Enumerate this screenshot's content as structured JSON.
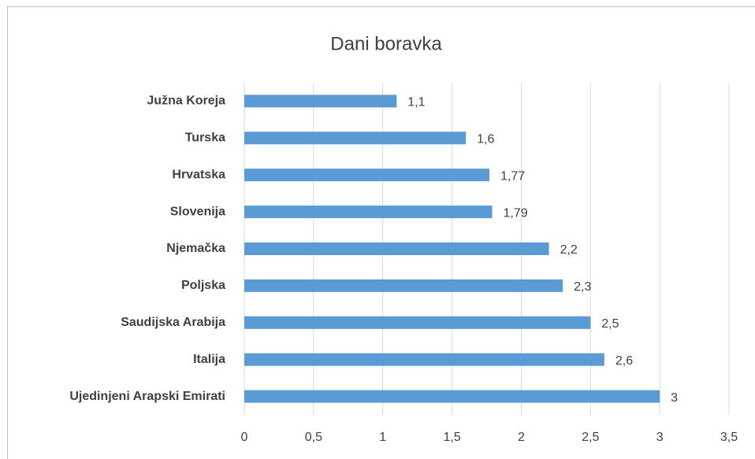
{
  "chart_data": {
    "type": "bar",
    "orientation": "horizontal",
    "title": "Dani boravka",
    "categories": [
      "Južna Koreja",
      "Turska",
      "Hrvatska",
      "Slovenija",
      "Njemačka",
      "Poljska",
      "Saudijska Arabija",
      "Italija",
      "Ujedinjeni Arapski Emirati"
    ],
    "values": [
      1.1,
      1.6,
      1.77,
      1.79,
      2.2,
      2.3,
      2.5,
      2.6,
      3
    ],
    "value_labels": [
      "1,1",
      "1,6",
      "1,77",
      "1,79",
      "2,2",
      "2,3",
      "2,5",
      "2,6",
      "3"
    ],
    "color": "#5b9bd5",
    "xlim": [
      0,
      3.5
    ],
    "xticks": [
      0,
      {
        "value": 0.5,
        "label": "0,5"
      },
      1,
      {
        "value": 1.5,
        "label": "1,5"
      },
      2,
      {
        "value": 2.5,
        "label": "2,5"
      },
      3,
      {
        "value": 3.5,
        "label": "3,5"
      }
    ],
    "grid": true
  }
}
